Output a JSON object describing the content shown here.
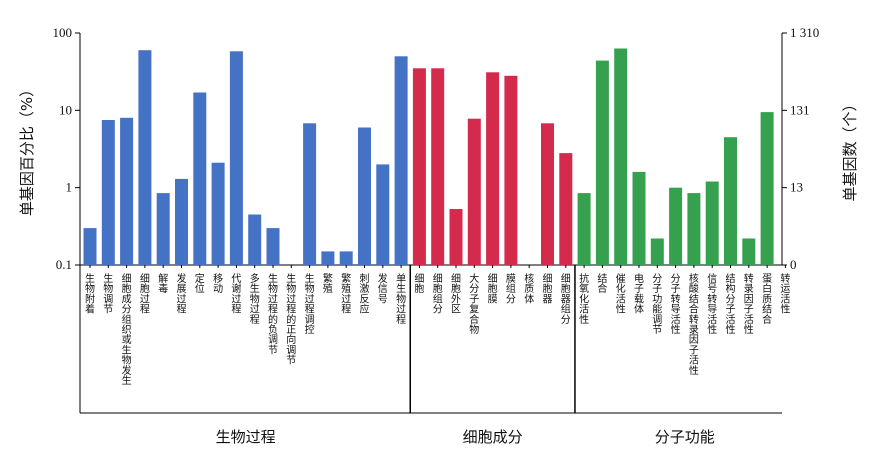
{
  "chart_data": {
    "type": "bar",
    "y_scale": "log",
    "ylim": [
      0.1,
      100
    ],
    "left_axis": {
      "label": "单基因百分比（%）",
      "ticks": [
        "0.1",
        "1",
        "10",
        "100"
      ]
    },
    "right_axis": {
      "label": "单基因数（个）",
      "ticks": [
        "0",
        "13",
        "131",
        "1 310"
      ]
    },
    "groups": [
      {
        "name": "生物过程",
        "color": "#4472c4",
        "categories": [
          "生物附着",
          "生物调节",
          "细胞成分组织或生物发生",
          "细胞过程",
          "解毒",
          "发展过程",
          "定位",
          "移动",
          "代谢过程",
          "多生物过程",
          "生物过程的负调节",
          "生物过程的正向调节",
          "生物过程调控",
          "繁殖",
          "繁殖过程",
          "刺激反应",
          "发信号",
          "单生物过程"
        ],
        "values": [
          0.3,
          7.5,
          8,
          60,
          0.85,
          1.3,
          17,
          2.1,
          58,
          0.45,
          0.3,
          null,
          6.8,
          0.15,
          0.15,
          6,
          2,
          50
        ]
      },
      {
        "name": "细胞成分",
        "color": "#d42a4c",
        "categories": [
          "细胞",
          "细胞组分",
          "细胞外区",
          "大分子复合物",
          "细胞膜",
          "膜组分",
          "核质体",
          "细胞器",
          "细胞器组分"
        ],
        "values": [
          35,
          35,
          0.53,
          7.8,
          31,
          28,
          null,
          6.8,
          2.8
        ]
      },
      {
        "name": "分子功能",
        "color": "#35a14f",
        "categories": [
          "抗氧化活性",
          "结合",
          "催化活性",
          "电子载体",
          "分子功能调节",
          "分子转导活性",
          "核酸结合转录因子活性",
          "信号转导活性",
          "结构分子活性",
          "转录因子活性",
          "蛋白质结合",
          "转运活性"
        ],
        "values": [
          0.85,
          44,
          63,
          1.6,
          0.22,
          1,
          0.85,
          1.2,
          4.5,
          0.22,
          9.5,
          null
        ]
      }
    ]
  }
}
